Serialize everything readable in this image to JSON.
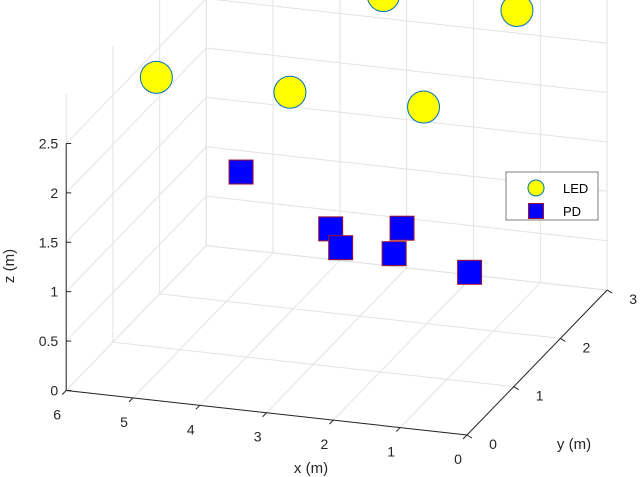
{
  "chart_data": {
    "type": "scatter",
    "projection": "3d",
    "xlabel": "x (m)",
    "ylabel": "y (m)",
    "zlabel": "z (m)",
    "xlim": [
      0,
      6
    ],
    "ylim": [
      0,
      3
    ],
    "zlim": [
      0,
      2.5
    ],
    "xticks": [
      "0",
      "1",
      "2",
      "3",
      "4",
      "5",
      "6"
    ],
    "yticks": [
      "0",
      "1",
      "2",
      "3"
    ],
    "zticks": [
      "0",
      "0.5",
      "1",
      "1.5",
      "2",
      "2.5"
    ],
    "grid": true,
    "legend": "right",
    "series": [
      {
        "name": "LED",
        "marker": "circle",
        "face_color": "#ffff00",
        "edge_color": "#0072bd",
        "points": [
          {
            "x": 5,
            "y": 0.5,
            "z": 3
          },
          {
            "x": 3,
            "y": 0.5,
            "z": 3
          },
          {
            "x": 1,
            "y": 0.5,
            "z": 3
          },
          {
            "x": 5,
            "y": 2.5,
            "z": 3
          },
          {
            "x": 3,
            "y": 2.5,
            "z": 3
          },
          {
            "x": 1,
            "y": 2.5,
            "z": 3
          }
        ]
      },
      {
        "name": "PD",
        "marker": "square",
        "face_color": "#0000ff",
        "edge_color": "#a2142f",
        "points": [
          {
            "x": 5.2,
            "y": 2.6,
            "z": 1.0
          },
          {
            "x": 3.0,
            "y": 2.9,
            "z": 0.45
          },
          {
            "x": 2.6,
            "y": 0.8,
            "z": 1.5
          },
          {
            "x": 2.8,
            "y": 1.3,
            "z": 1.05
          },
          {
            "x": 2.0,
            "y": 1.3,
            "z": 1.05
          },
          {
            "x": 0.8,
            "y": 1.2,
            "z": 1.0
          }
        ]
      }
    ]
  }
}
